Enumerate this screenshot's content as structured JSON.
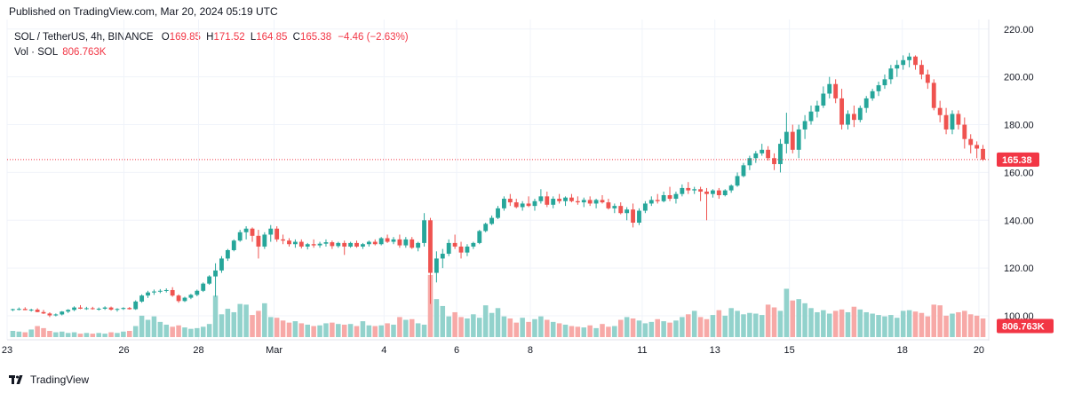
{
  "header": {
    "published": "Published on TradingView.com, Mar 20, 2024 05:19 UTC"
  },
  "legend": {
    "symbol": "SOL / TetherUS, 4h, BINANCE",
    "open_label": "O",
    "open": "169.85",
    "high_label": "H",
    "high": "171.52",
    "low_label": "L",
    "low": "164.85",
    "close_label": "C",
    "close": "165.38",
    "change": "−4.46 (−2.63%)",
    "vol_label": "Vol · SOL",
    "vol_value": "806.763K"
  },
  "footer": {
    "brand": "TradingView"
  },
  "colors": {
    "up": "#26a69a",
    "down": "#ef5350",
    "up_vol": "#92d2cc",
    "down_vol": "#f7a9a7",
    "last_price": "#f23645",
    "grid": "#f0f3fa"
  },
  "chart_data": {
    "type": "candlestick",
    "title": "SOL / TetherUS, 4h, BINANCE",
    "y_ticks": [
      "220.00",
      "200.00",
      "180.00",
      "160.00",
      "140.00",
      "120.00",
      "100.00"
    ],
    "ylim": [
      90,
      224
    ],
    "x_ticks": [
      "23",
      "26",
      "28",
      "Mar",
      "4",
      "6",
      "8",
      "11",
      "13",
      "15",
      "18",
      "20"
    ],
    "last_price": 165.38,
    "last_price_label": "165.38",
    "last_volume_label": "806.763K",
    "candles": [
      [
        102.5,
        103,
        102,
        102.8
      ],
      [
        102.8,
        103.5,
        102.3,
        102.9
      ],
      [
        102.9,
        103.6,
        102.4,
        102.4
      ],
      [
        102.4,
        103,
        101.8,
        102.6
      ],
      [
        102.6,
        103.2,
        101.5,
        101.6
      ],
      [
        101.6,
        102.5,
        100.8,
        101
      ],
      [
        101,
        101.5,
        99.5,
        100.2
      ],
      [
        100.2,
        101,
        99.8,
        100.6
      ],
      [
        100.6,
        102,
        100.2,
        101.8
      ],
      [
        101.8,
        102.8,
        101.2,
        102.5
      ],
      [
        102.5,
        104,
        102,
        103.5
      ],
      [
        103.5,
        104.5,
        102.8,
        103
      ],
      [
        103,
        103.8,
        102.5,
        103.2
      ],
      [
        103.2,
        103.8,
        102.6,
        102.9
      ],
      [
        102.9,
        103.5,
        102.2,
        103
      ],
      [
        103,
        104,
        102.5,
        103.5
      ],
      [
        103.5,
        103.9,
        102.2,
        102.6
      ],
      [
        102.6,
        103.2,
        101.8,
        102.9
      ],
      [
        102.9,
        103.6,
        102.5,
        103.3
      ],
      [
        103.3,
        103.7,
        102.6,
        102.8
      ],
      [
        102.8,
        106.5,
        102.5,
        106
      ],
      [
        106,
        109,
        105.5,
        108.5
      ],
      [
        108.5,
        110.5,
        107.5,
        109.8
      ],
      [
        109.8,
        111,
        108.8,
        110.2
      ],
      [
        110.2,
        111.2,
        109.5,
        110.5
      ],
      [
        110.5,
        111.5,
        109.8,
        110.8
      ],
      [
        110.8,
        112,
        108,
        108.5
      ],
      [
        108.5,
        109,
        105.5,
        106.2
      ],
      [
        106.2,
        108,
        105.8,
        107.6
      ],
      [
        107.6,
        109.2,
        107,
        108.8
      ],
      [
        108.8,
        111,
        108.2,
        110.5
      ],
      [
        110.5,
        114,
        110,
        113.5
      ],
      [
        113.5,
        117,
        113,
        116.5
      ],
      [
        116.5,
        122,
        108,
        119
      ],
      [
        119,
        125,
        118,
        124
      ],
      [
        124,
        128,
        123,
        127.5
      ],
      [
        127.5,
        132,
        127,
        131.5
      ],
      [
        131.5,
        136,
        131,
        135
      ],
      [
        135,
        137.5,
        132,
        136.5
      ],
      [
        136.5,
        137,
        131,
        133.5
      ],
      [
        133.5,
        136,
        124,
        129
      ],
      [
        129,
        135,
        128,
        134
      ],
      [
        134,
        138,
        131,
        136.5
      ],
      [
        136.5,
        137.5,
        131,
        132
      ],
      [
        132,
        134,
        130,
        131.5
      ],
      [
        131.5,
        132.5,
        129,
        130
      ],
      [
        130,
        132,
        128.5,
        131
      ],
      [
        131,
        132,
        128.2,
        129
      ],
      [
        129,
        130.5,
        127.8,
        130
      ],
      [
        130,
        132,
        128.5,
        129.5
      ],
      [
        129.5,
        131,
        128.5,
        130.2
      ],
      [
        130.2,
        132,
        129,
        130.8
      ],
      [
        130.8,
        131.5,
        128,
        129.2
      ],
      [
        129.2,
        131,
        128.5,
        130.5
      ],
      [
        130.5,
        131.5,
        125.5,
        129
      ],
      [
        129,
        131,
        128.5,
        130.5
      ],
      [
        130.5,
        131.5,
        128.5,
        129
      ],
      [
        129,
        130.5,
        128,
        130
      ],
      [
        130,
        131.5,
        129,
        131
      ],
      [
        131,
        132,
        129.5,
        130
      ],
      [
        130,
        133,
        129.5,
        132.5
      ],
      [
        132.5,
        134,
        130.5,
        131
      ],
      [
        131,
        133,
        130,
        132
      ],
      [
        132,
        134,
        128.5,
        129.5
      ],
      [
        129.5,
        133,
        128.5,
        132
      ],
      [
        132,
        133,
        128,
        128.5
      ],
      [
        128.5,
        131,
        127,
        130.5
      ],
      [
        130.5,
        143,
        129,
        140
      ],
      [
        140,
        141,
        105,
        118
      ],
      [
        118,
        127,
        114,
        124
      ],
      [
        124,
        128,
        120,
        126
      ],
      [
        126,
        132,
        125,
        130.5
      ],
      [
        130.5,
        134,
        128,
        129
      ],
      [
        129,
        131,
        124,
        126.5
      ],
      [
        126.5,
        130,
        125,
        129
      ],
      [
        129,
        131,
        128,
        130.5
      ],
      [
        130.5,
        136,
        130,
        135.5
      ],
      [
        135.5,
        139,
        135,
        138.5
      ],
      [
        138.5,
        142,
        138,
        141
      ],
      [
        141,
        146,
        140.5,
        145
      ],
      [
        145,
        150,
        144,
        149
      ],
      [
        149,
        151,
        146,
        147.5
      ],
      [
        147.5,
        149,
        145,
        145.5
      ],
      [
        145.5,
        148,
        144,
        147
      ],
      [
        147,
        150,
        145.5,
        146
      ],
      [
        146,
        149,
        144,
        148
      ],
      [
        148,
        153,
        147,
        150
      ],
      [
        150,
        152,
        145.5,
        146.5
      ],
      [
        146.5,
        150,
        145,
        149
      ],
      [
        149,
        151,
        147,
        148
      ],
      [
        148,
        150,
        146,
        149.5
      ],
      [
        149.5,
        151,
        147.5,
        148
      ],
      [
        148,
        150,
        146.5,
        147.5
      ],
      [
        147.5,
        149.5,
        145.5,
        148.5
      ],
      [
        148.5,
        150,
        146,
        147
      ],
      [
        147,
        149,
        145,
        148.5
      ],
      [
        148.5,
        150.5,
        147,
        147.5
      ],
      [
        147.5,
        149,
        144.5,
        145
      ],
      [
        145,
        147,
        143,
        146
      ],
      [
        146,
        147.5,
        142.5,
        143
      ],
      [
        143,
        145.5,
        140,
        144.5
      ],
      [
        144.5,
        147,
        137,
        139
      ],
      [
        139,
        145,
        138,
        144
      ],
      [
        144,
        148,
        143,
        147
      ],
      [
        147,
        150,
        146,
        148.5
      ],
      [
        148.5,
        151,
        147,
        148
      ],
      [
        148,
        152,
        147.5,
        150.5
      ],
      [
        150.5,
        154,
        148,
        149
      ],
      [
        149,
        152,
        147,
        151
      ],
      [
        151,
        155,
        150,
        153.5
      ],
      [
        153.5,
        156,
        151,
        152.5
      ],
      [
        152.5,
        154,
        151,
        153
      ],
      [
        153,
        154,
        148,
        152
      ],
      [
        152,
        153.5,
        140,
        151
      ],
      [
        151,
        153,
        149.5,
        152.5
      ],
      [
        152.5,
        153.5,
        149,
        150.5
      ],
      [
        150.5,
        153,
        150,
        152.5
      ],
      [
        152.5,
        155,
        151.5,
        154.5
      ],
      [
        154.5,
        160,
        154,
        158.5
      ],
      [
        158.5,
        164,
        158,
        163
      ],
      [
        163,
        167,
        161,
        166
      ],
      [
        166,
        169,
        164,
        168
      ],
      [
        168,
        172,
        167,
        169.5
      ],
      [
        169.5,
        171,
        165,
        166
      ],
      [
        166,
        168,
        161,
        163.5
      ],
      [
        163.5,
        174,
        160,
        172
      ],
      [
        172,
        185,
        168,
        177
      ],
      [
        177,
        180,
        168,
        169.5
      ],
      [
        169.5,
        180,
        166,
        178
      ],
      [
        178,
        184,
        174,
        181.5
      ],
      [
        181.5,
        188,
        180,
        185.5
      ],
      [
        185.5,
        190,
        183,
        188
      ],
      [
        188,
        196,
        187,
        193
      ],
      [
        193,
        200,
        191,
        197
      ],
      [
        197,
        199,
        189,
        191
      ],
      [
        191,
        195,
        178,
        180
      ],
      [
        180,
        186,
        178,
        184.5
      ],
      [
        184.5,
        188,
        179,
        182
      ],
      [
        182,
        188,
        181,
        187
      ],
      [
        187,
        192,
        185,
        191
      ],
      [
        191,
        195,
        190,
        194
      ],
      [
        194,
        198,
        192,
        196.5
      ],
      [
        196.5,
        201,
        195,
        199
      ],
      [
        199,
        205,
        197,
        203.5
      ],
      [
        203.5,
        207,
        200,
        205
      ],
      [
        205,
        209,
        203,
        207
      ],
      [
        207,
        210,
        204,
        208.5
      ],
      [
        208.5,
        209,
        203,
        205
      ],
      [
        205,
        207,
        199,
        201
      ],
      [
        201,
        203,
        195,
        197.5
      ],
      [
        197.5,
        199,
        186,
        187
      ],
      [
        187,
        190,
        181,
        184
      ],
      [
        184,
        187,
        176,
        178
      ],
      [
        178,
        186,
        176,
        184.5
      ],
      [
        184.5,
        186,
        178,
        180
      ],
      [
        180,
        183,
        170,
        174
      ],
      [
        174,
        176,
        168,
        171.5
      ],
      [
        171.5,
        173,
        166,
        170
      ],
      [
        169.85,
        171.52,
        164.85,
        165.38
      ]
    ],
    "volumes": [
      0.9,
      0.8,
      0.7,
      1.1,
      1.6,
      1.3,
      0.9,
      0.7,
      0.8,
      0.6,
      0.7,
      0.5,
      0.6,
      0.5,
      0.6,
      0.5,
      0.7,
      0.6,
      0.8,
      0.9,
      1.6,
      3.1,
      2.5,
      3.0,
      2.2,
      1.8,
      1.5,
      1.7,
      1.4,
      1.2,
      1.3,
      1.5,
      1.9,
      6.0,
      3.3,
      4.1,
      3.6,
      4.8,
      4.7,
      3.2,
      3.8,
      4.9,
      2.9,
      2.8,
      2.4,
      2.1,
      2.3,
      2.0,
      1.8,
      1.6,
      1.7,
      2.0,
      2.1,
      1.9,
      1.8,
      1.9,
      1.6,
      2.3,
      1.7,
      1.6,
      1.7,
      2.0,
      1.8,
      2.9,
      2.5,
      2.6,
      2.0,
      1.8,
      9.0,
      5.5,
      4.5,
      3.0,
      3.6,
      2.9,
      2.7,
      3.3,
      2.8,
      4.6,
      3.5,
      4.2,
      3.0,
      2.7,
      2.1,
      2.8,
      2.2,
      2.6,
      3.0,
      2.5,
      2.2,
      2.0,
      1.8,
      1.6,
      1.5,
      1.4,
      1.7,
      1.3,
      1.9,
      1.5,
      1.6,
      2.5,
      2.9,
      2.7,
      2.4,
      2.0,
      2.2,
      2.6,
      2.3,
      2.1,
      2.4,
      2.9,
      3.3,
      3.8,
      2.9,
      2.6,
      3.2,
      3.9,
      3.1,
      4.2,
      3.8,
      3.3,
      3.5,
      3.4,
      3.2,
      4.7,
      4.3,
      3.8,
      7.0,
      5.3,
      5.5,
      4.9,
      4.2,
      3.6,
      3.9,
      3.4,
      3.8,
      4.0,
      3.6,
      4.4,
      4.0,
      3.6,
      3.4,
      3.2,
      3.0,
      3.2,
      2.8,
      3.8,
      3.9,
      3.7,
      3.5,
      3.0,
      4.7,
      4.6,
      3.1,
      3.4,
      3.6,
      3.8,
      3.3,
      3.1,
      2.7,
      2.0,
      1.6
    ],
    "down_volume_indices": [
      0,
      1,
      4,
      5,
      6,
      9,
      14,
      16,
      18,
      25,
      26,
      33,
      38,
      40,
      42,
      50,
      58,
      60,
      62,
      64,
      67,
      69,
      71,
      74,
      76,
      78,
      80,
      82,
      84,
      86,
      88,
      90,
      92,
      95,
      98,
      100,
      104,
      106,
      109,
      112,
      114,
      116,
      119,
      121,
      123,
      125,
      127,
      131,
      133,
      135,
      138,
      141,
      143,
      146,
      148,
      150,
      152,
      155,
      157,
      159,
      160
    ]
  }
}
